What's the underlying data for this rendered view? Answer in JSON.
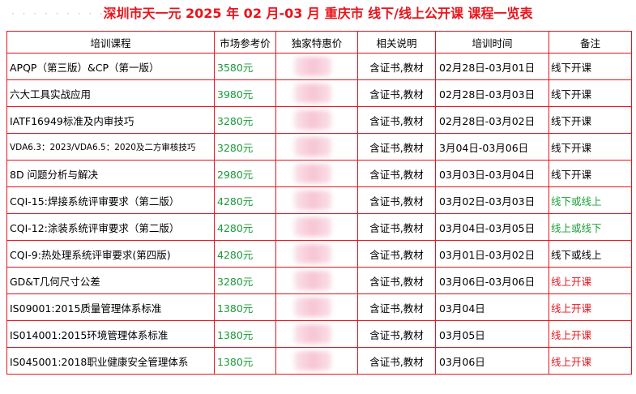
{
  "title": "深圳市天一元 2025 年 02 月-03 月 重庆市 线下/线上公开课 课程一览表",
  "title_dots": "· · · · · · · · ·",
  "headers": {
    "course": "培训课程",
    "market_price": "市场参考价",
    "special_price": "独家特惠价",
    "description": "相关说明",
    "time": "培训时间",
    "note": "备注"
  },
  "colors": {
    "accent": "#e8141c",
    "price_green": "#1a9a3a",
    "note_green": "#1aa33a"
  },
  "rows": [
    {
      "course": "APQP（第三版）&CP（第一版）",
      "price": "3580元",
      "desc": "含证书,教材",
      "time": "02月28日-03月01日",
      "note": "线下开课",
      "note_color": "offline",
      "small": false
    },
    {
      "course": "六大工具实战应用",
      "price": "3980元",
      "desc": "含证书,教材",
      "time": "02月28日-03月03日",
      "note": "线下开课",
      "note_color": "offline",
      "small": false
    },
    {
      "course": "IATF16949标准及内审技巧",
      "price": "3280元",
      "desc": "含证书,教材",
      "time": "02月28日-03月02日",
      "note": "线下开课",
      "note_color": "offline",
      "small": false
    },
    {
      "course": "VDA6.3：2023/VDA6.5：2020及二方审核技巧",
      "price": "3280元",
      "desc": "含证书,教材",
      "time": "3月04日-03月06日",
      "note": "线下开课",
      "note_color": "offline",
      "small": true
    },
    {
      "course": "8D 问题分析与解决",
      "price": "2980元",
      "desc": "含证书,教材",
      "time": "03月03日-03月04日",
      "note": "线下开课",
      "note_color": "offline",
      "small": false
    },
    {
      "course": "CQI-15:焊接系统评审要求（第二版）",
      "price": "4280元",
      "desc": "含证书,教材",
      "time": "03月02日-03月03日",
      "note": "线下或线上",
      "note_color": "green",
      "small": false
    },
    {
      "course": "CQI-12:涂装系统评审要求（第二版）",
      "price": "4280元",
      "desc": "含证书,教材",
      "time": "03月04日-03月05日",
      "note": "线上或线下",
      "note_color": "green",
      "small": false
    },
    {
      "course": "CQI-9:热处理系统评审要求(第四版)",
      "price": "4280元",
      "desc": "含证书,教材",
      "time": "03月01日-03月02日",
      "note": "线下或线上",
      "note_color": "offline",
      "small": false
    },
    {
      "course": "GD&T几何尺寸公差",
      "price": "3280元",
      "desc": "含证书,教材",
      "time": "03月06日-03月06日",
      "note": "线上开课",
      "note_color": "red",
      "small": false
    },
    {
      "course": "IS09001:2015质量管理体系标准",
      "price": "1380元",
      "desc": "含证书,教材",
      "time": "03月04日",
      "note": "线上开课",
      "note_color": "red",
      "small": false
    },
    {
      "course": "IS014001:2015环境管理体系标准",
      "price": "1380元",
      "desc": "含证书,教材",
      "time": "03月05日",
      "note": "线上开课",
      "note_color": "red",
      "small": false
    },
    {
      "course": "IS045001:2018职业健康安全管理体系",
      "price": "1380元",
      "desc": "含证书,教材",
      "time": "03月06日",
      "note": "线上开课",
      "note_color": "red",
      "small": false
    }
  ]
}
